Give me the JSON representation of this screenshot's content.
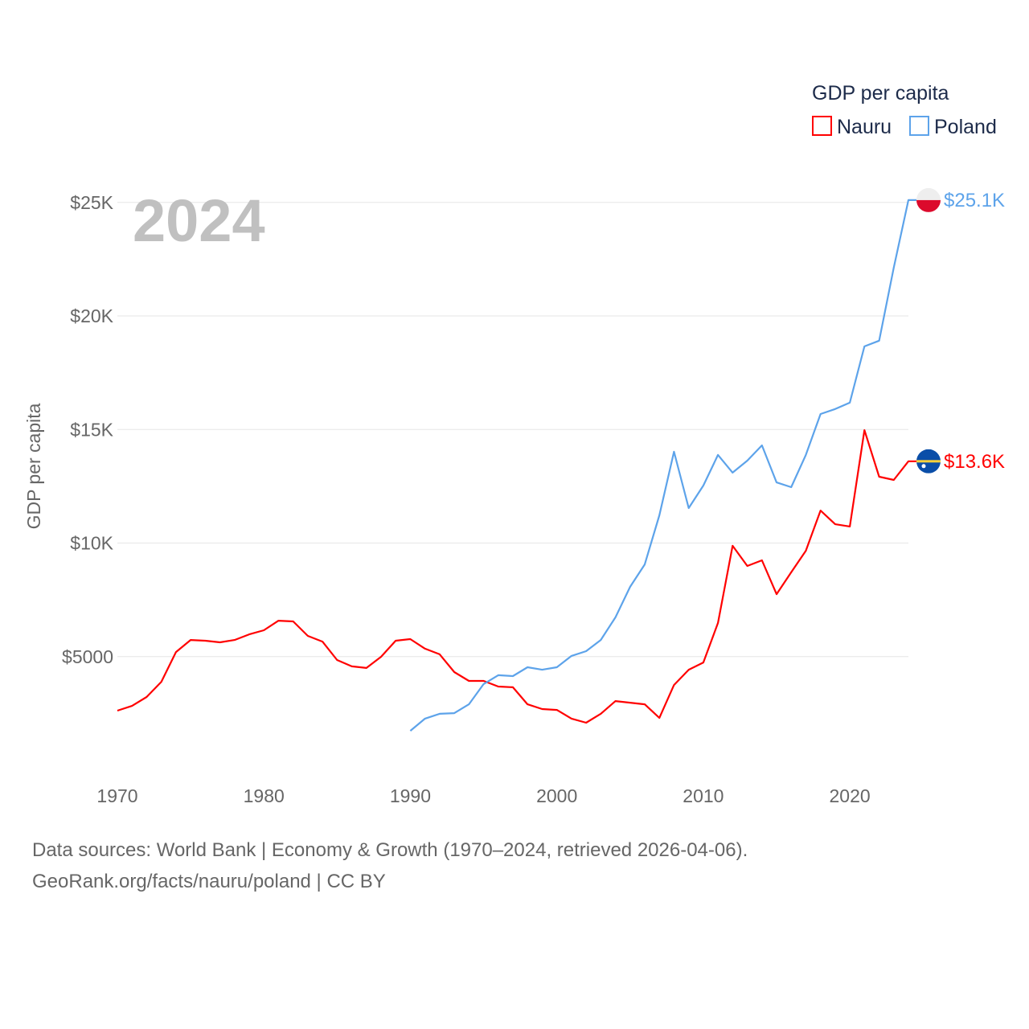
{
  "chart_data": {
    "type": "line",
    "title": "",
    "year_watermark": "2024",
    "ylabel": "GDP per capita",
    "xlabel": "",
    "ylim": [
      0,
      25000
    ],
    "xlim": [
      1970,
      2024
    ],
    "grid": true,
    "y_ticks": [
      {
        "value": 5000,
        "label": "$5000"
      },
      {
        "value": 10000,
        "label": "$10K"
      },
      {
        "value": 15000,
        "label": "$15K"
      },
      {
        "value": 20000,
        "label": "$20K"
      },
      {
        "value": 25000,
        "label": "$25K"
      }
    ],
    "x_ticks": [
      {
        "value": 1970,
        "label": "1970"
      },
      {
        "value": 1980,
        "label": "1980"
      },
      {
        "value": 1990,
        "label": "1990"
      },
      {
        "value": 2000,
        "label": "2000"
      },
      {
        "value": 2010,
        "label": "2010"
      },
      {
        "value": 2020,
        "label": "2020"
      }
    ],
    "legend": {
      "title": "GDP per capita",
      "placement": "top-right"
    },
    "series": [
      {
        "name": "Nauru",
        "color": "#ff0000",
        "end_label": "$13.6K",
        "start_year": 1970,
        "values": [
          2620,
          2830,
          3220,
          3890,
          5200,
          5730,
          5700,
          5630,
          5730,
          5980,
          6160,
          6580,
          6550,
          5910,
          5660,
          4850,
          4570,
          4500,
          4990,
          5700,
          5770,
          5350,
          5100,
          4320,
          3930,
          3930,
          3680,
          3650,
          2900,
          2690,
          2650,
          2270,
          2090,
          2480,
          3040,
          2970,
          2900,
          2300,
          3750,
          4420,
          4740,
          6480,
          9880,
          8990,
          9240,
          7750,
          8710,
          9660,
          11430,
          10830,
          10730,
          14970,
          12920,
          12780,
          13600
        ]
      },
      {
        "name": "Poland",
        "color": "#5da3ea",
        "end_label": "$25.1K",
        "start_year": 1990,
        "values": [
          1730,
          2270,
          2480,
          2510,
          2900,
          3790,
          4180,
          4140,
          4530,
          4420,
          4530,
          5030,
          5240,
          5730,
          6730,
          8070,
          9060,
          11220,
          14020,
          11540,
          12530,
          13880,
          13100,
          13630,
          14300,
          12670,
          12460,
          13880,
          15680,
          15900,
          16180,
          18660,
          18910,
          22130,
          25100
        ]
      }
    ]
  },
  "footer": {
    "line1": "Data sources: World Bank | Economy & Growth (1970–2024, retrieved 2026-04-06).",
    "line2": "GeoRank.org/facts/nauru/poland | CC BY"
  }
}
